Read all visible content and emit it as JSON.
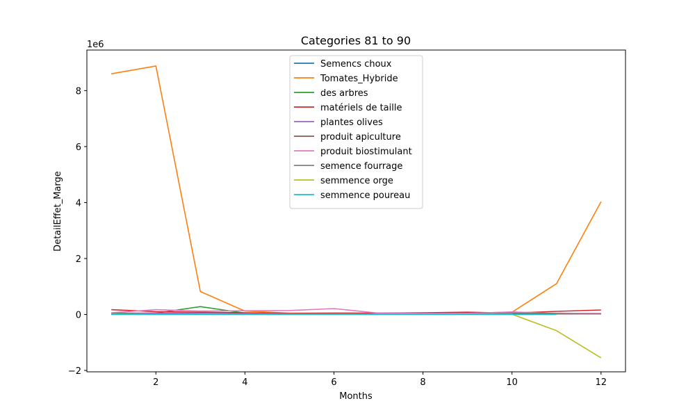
{
  "chart_data": {
    "type": "line",
    "title": "Categories 81 to 90",
    "xlabel": "Months",
    "ylabel": "DetailEffet_Marge",
    "y_offset_label": "1e6",
    "y_scale_multiplier": 1000000,
    "xlim": [
      0.45,
      12.55
    ],
    "ylim": [
      -2.05,
      9.45
    ],
    "xticks": [
      2,
      4,
      6,
      8,
      10,
      12
    ],
    "xtick_labels": [
      "2",
      "4",
      "6",
      "8",
      "10",
      "12"
    ],
    "yticks": [
      -2,
      0,
      2,
      4,
      6,
      8
    ],
    "ytick_labels": [
      "−2",
      "0",
      "2",
      "4",
      "6",
      "8"
    ],
    "grid": false,
    "legend_position": "top-center",
    "series": [
      {
        "name": "Semencs choux",
        "color": "#1f77b4",
        "x": [
          1,
          2,
          3,
          4,
          5,
          6,
          7,
          8,
          9,
          10,
          11,
          12
        ],
        "values": [
          0.02,
          0.02,
          0.02,
          0.02,
          0.02,
          0.02,
          0.02,
          0.02,
          0.02,
          0.02,
          0.02,
          0.02
        ]
      },
      {
        "name": "Tomates_Hybride",
        "color": "#ff7f0e",
        "x": [
          1,
          2,
          3,
          4,
          5,
          6,
          7,
          8,
          9,
          10,
          11,
          12
        ],
        "values": [
          8.6,
          8.88,
          0.82,
          0.12,
          0.05,
          0.05,
          0.05,
          0.05,
          0.05,
          0.08,
          1.1,
          4.03
        ]
      },
      {
        "name": "des arbres",
        "color": "#2ca02c",
        "x": [
          1,
          2,
          3,
          4,
          5,
          6,
          7,
          8,
          9,
          10,
          11,
          12
        ],
        "values": [
          0.05,
          0.05,
          0.28,
          0.05,
          0.03,
          0.03,
          0.03,
          0.03,
          0.03,
          0.03,
          0.03,
          0.03
        ]
      },
      {
        "name": "matériels de taille",
        "color": "#d62728",
        "x": [
          1,
          2,
          3,
          4,
          5,
          6,
          7,
          8,
          9,
          10,
          11,
          12
        ],
        "values": [
          0.17,
          0.1,
          0.08,
          0.06,
          0.04,
          0.05,
          0.05,
          0.06,
          0.08,
          0.05,
          0.11,
          0.16
        ]
      },
      {
        "name": "plantes olives",
        "color": "#9467bd",
        "x": [
          1,
          2,
          3,
          4,
          5,
          6,
          7,
          8,
          9,
          10,
          11,
          12
        ],
        "values": [
          0.02,
          0.05,
          0.04,
          0.03,
          0.02,
          0.02,
          0.02,
          0.02,
          0.02,
          0.02,
          0.02,
          0.02
        ]
      },
      {
        "name": "produit apiculture",
        "color": "#8c564b",
        "x": [
          1,
          2,
          3,
          4,
          5,
          6,
          7,
          8,
          9,
          10,
          11,
          12
        ],
        "values": [
          0.02,
          0.02,
          0.02,
          0.02,
          0.02,
          0.02,
          0.02,
          0.02,
          0.02,
          0.02,
          0.02,
          0.02
        ]
      },
      {
        "name": "produit biostimulant",
        "color": "#e377c2",
        "x": [
          1,
          2,
          3,
          4,
          5,
          6,
          7,
          8,
          9,
          10,
          11,
          12
        ],
        "values": [
          0.06,
          0.17,
          0.12,
          0.13,
          0.14,
          0.21,
          0.05,
          0.04,
          0.04,
          0.09,
          0.04,
          0.04
        ]
      },
      {
        "name": "semence fourrage",
        "color": "#7f7f7f",
        "x": [
          1,
          2,
          3,
          4,
          5,
          6,
          7,
          8,
          9,
          10,
          11,
          12
        ],
        "values": [
          0.01,
          0.01,
          0.01,
          0.01,
          0.01,
          0.01,
          0.01,
          0.01,
          0.01,
          0.05,
          0.04,
          0.02
        ]
      },
      {
        "name": "semmence orge",
        "color": "#bcbd22",
        "x": [
          1,
          2,
          3,
          4,
          5,
          6,
          7,
          8,
          9,
          10,
          11,
          12
        ],
        "values": [
          0.01,
          0.01,
          0.01,
          0.01,
          0.01,
          0.01,
          0.01,
          0.01,
          0.01,
          0.01,
          -0.58,
          -1.55
        ]
      },
      {
        "name": "semmence poureau",
        "color": "#17becf",
        "x": [
          1,
          2,
          3,
          4,
          5,
          6,
          7,
          8,
          9,
          10,
          11
        ],
        "values": [
          0.0,
          0.0,
          0.0,
          0.0,
          0.0,
          0.0,
          0.0,
          0.0,
          0.0,
          0.0,
          0.0
        ]
      }
    ]
  }
}
